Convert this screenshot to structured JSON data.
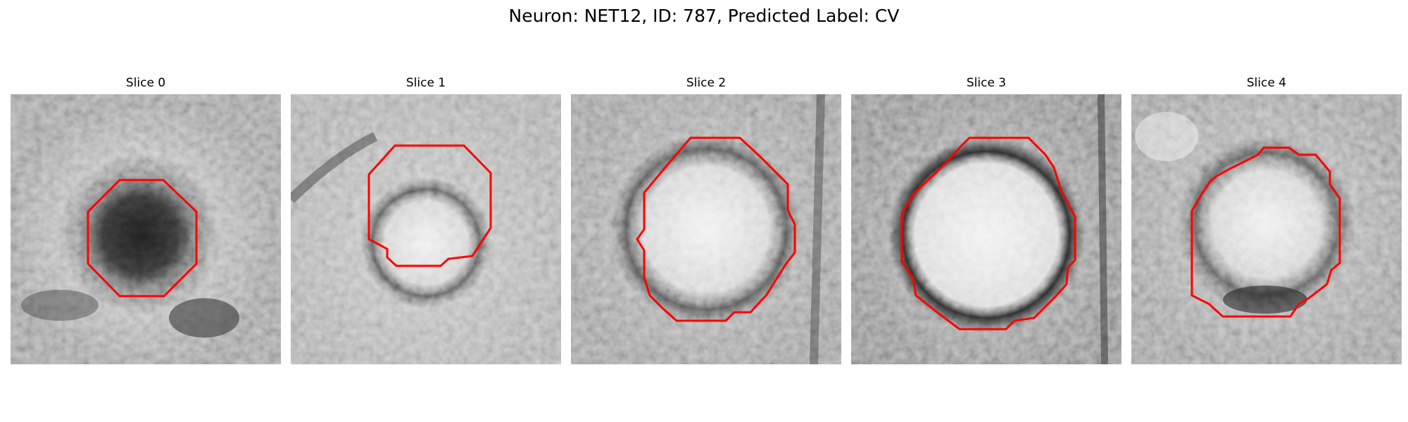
{
  "figure": {
    "title": "Neuron: NET12, ID: 787, Predicted Label: CV"
  },
  "panels": [
    {
      "title": "Slice 0",
      "center": "dark",
      "outline_color": "#ff0000"
    },
    {
      "title": "Slice 1",
      "center": "bright",
      "outline_color": "#ff0000"
    },
    {
      "title": "Slice 2",
      "center": "bright",
      "outline_color": "#ff0000"
    },
    {
      "title": "Slice 3",
      "center": "bright",
      "outline_color": "#ff0000"
    },
    {
      "title": "Slice 4",
      "center": "bright",
      "outline_color": "#ff0000"
    }
  ]
}
